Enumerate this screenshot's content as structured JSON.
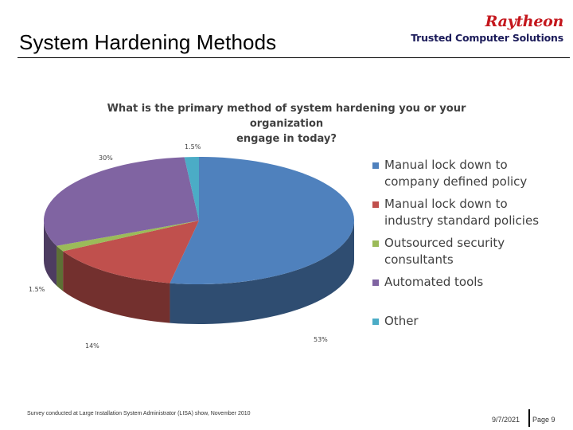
{
  "header": {
    "title": "System Hardening Methods",
    "logo_brand": "Raytheon",
    "logo_sub": "Trusted Computer Solutions"
  },
  "chart_data": {
    "type": "pie",
    "title": "What is the primary method of system hardening you or your organization engage in today?",
    "title_lines": [
      "What is the primary method of system hardening you or your organization",
      "engage in today?"
    ],
    "slices": [
      {
        "label": "Manual lock down to company defined policy",
        "legend_lines": [
          "Manual lock down to",
          "company defined policy"
        ],
        "value": 53,
        "display": "53%",
        "color": "#4f81bd"
      },
      {
        "label": "Manual lock down to industry standard policies",
        "legend_lines": [
          "Manual lock down to",
          "industry standard policies"
        ],
        "value": 14,
        "display": "14%",
        "color": "#c0504d"
      },
      {
        "label": "Outsourced security consultants",
        "legend_lines": [
          "Outsourced security",
          "consultants"
        ],
        "value": 1.5,
        "display": "1.5%",
        "color": "#9bbb59"
      },
      {
        "label": "Automated tools",
        "legend_lines": [
          "Automated tools"
        ],
        "value": 30,
        "display": "30%",
        "color": "#8064a2"
      },
      {
        "label": "Other",
        "legend_lines": [
          "Other"
        ],
        "value": 1.5,
        "display": "1.5%",
        "color": "#4bacc6"
      }
    ],
    "style": "3d",
    "legend_position": "right"
  },
  "footer": {
    "note": "Survey conducted at Large Installation System Administrator (LISA) show, November 2010",
    "date": "9/7/2021",
    "page": "Page 9"
  }
}
